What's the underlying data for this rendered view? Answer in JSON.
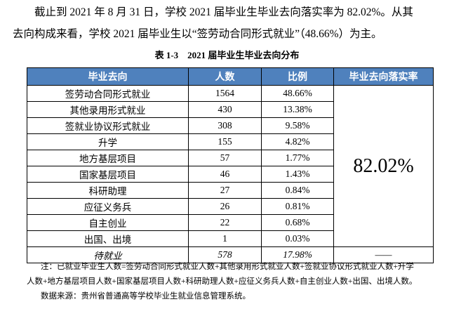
{
  "paragraph": [
    "截止到 2021 年 8 月 31 日，学校 2021 届毕业生毕业去向落实率为 82.02%。从其",
    "去向构成来看，学校 2021 届毕业生以“签劳动合同形式就业”（48.66%）为主。"
  ],
  "caption": "表 1-3　2021 届毕业生毕业去向分布",
  "table": {
    "header": [
      "毕业去向",
      "人数",
      "比例",
      "毕业去向落实率"
    ],
    "rows": [
      [
        "签劳动合同形式就业",
        "1564",
        "48.66%"
      ],
      [
        "其他录用形式就业",
        "430",
        "13.38%"
      ],
      [
        "签就业协议形式就业",
        "308",
        "9.58%"
      ],
      [
        "升学",
        "155",
        "4.82%"
      ],
      [
        "地方基层项目",
        "57",
        "1.77%"
      ],
      [
        "国家基层项目",
        "46",
        "1.43%"
      ],
      [
        "科研助理",
        "27",
        "0.84%"
      ],
      [
        "应征义务兵",
        "26",
        "0.81%"
      ],
      [
        "自主创业",
        "22",
        "0.68%"
      ],
      [
        "出国、出境",
        "1",
        "0.03%"
      ]
    ],
    "rate": "82.02%",
    "last_row": [
      "待就业",
      "578",
      "17.98%",
      "——"
    ]
  },
  "notes": [
    "注：已就业毕业生人数=签劳动合同形式就业人数+其他录用形式就业人数+签就业协议形式就业人数+升学",
    "人数+地方基层项目人数+国家基层项目人数+科研助理人数+应征义务兵人数+自主创业人数+出国、出境人数。",
    "数据来源：贵州省普通高等学校毕业生就业信息管理系统。"
  ]
}
